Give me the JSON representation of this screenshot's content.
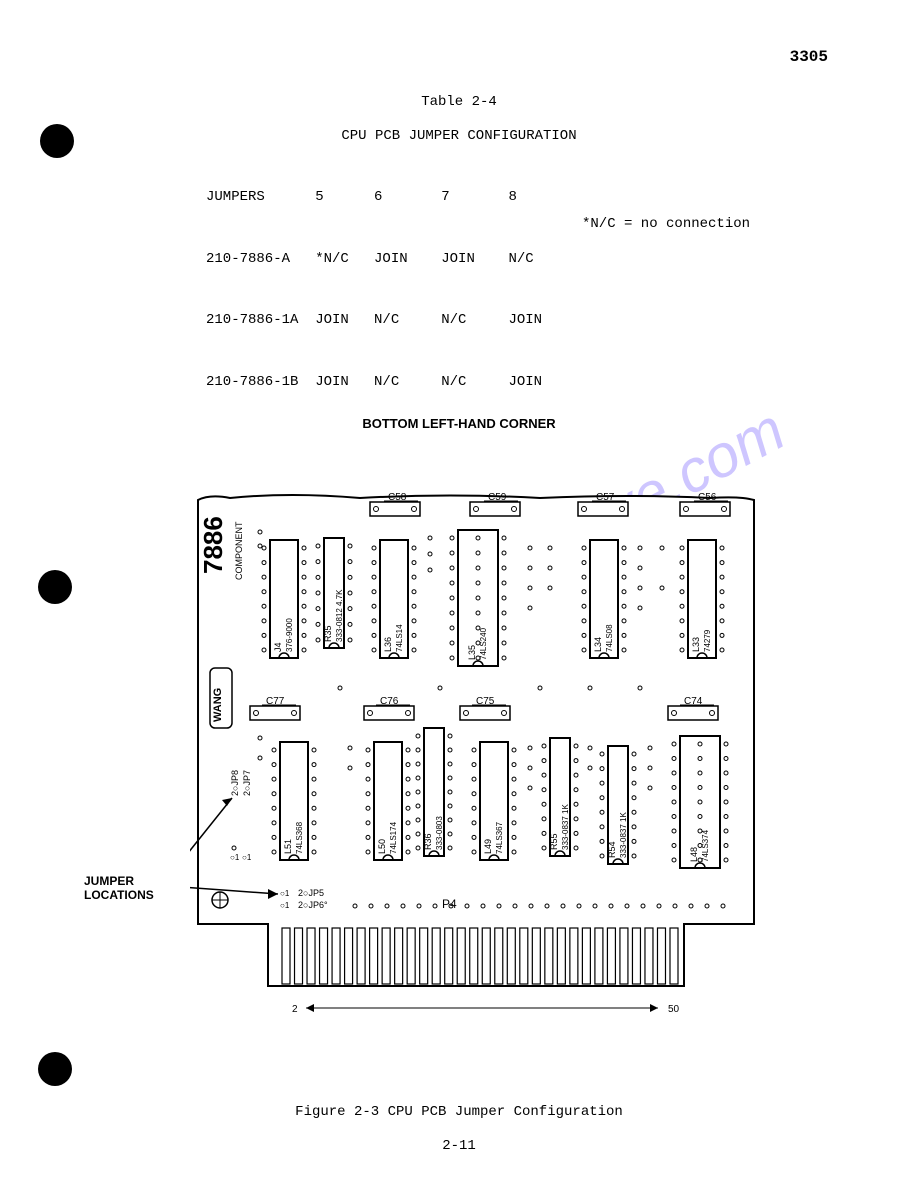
{
  "doc_number": "3305",
  "table_number": "Table 2-4",
  "table_title": "CPU PCB JUMPER CONFIGURATION",
  "nc_note": "*N/C = no connection",
  "jumper_table": {
    "header": [
      "JUMPERS",
      "5",
      "6",
      "7",
      "8"
    ],
    "rows": [
      [
        "210-7886-A",
        "*N/C",
        "JOIN",
        "JOIN",
        "N/C"
      ],
      [
        "210-7886-1A",
        "JOIN",
        "N/C",
        "N/C",
        "JOIN"
      ],
      [
        "210-7886-1B",
        "JOIN",
        "N/C",
        "N/C",
        "JOIN"
      ]
    ]
  },
  "figure_label": "BOTTOM LEFT-HAND CORNER",
  "jumper_locations_label_1": "JUMPER",
  "jumper_locations_label_2": "LOCATIONS",
  "figure_caption": "Figure 2-3   CPU PCB Jumper Configuration",
  "page_number": "2-11",
  "watermark": "manualshive.com",
  "pcb": {
    "board_label": "7886",
    "component_label": "COMPONENT",
    "brand": "WANG",
    "connector_label": "P4",
    "edge_left": "2",
    "edge_right": "50",
    "jp_labels": {
      "jp8": "JP8",
      "jp7": "JP7",
      "jp5": "JP5",
      "jp6": "JP6"
    },
    "caps_top": [
      "C58",
      "C59",
      "C57",
      "C56"
    ],
    "caps_mid": [
      "C77",
      "C76",
      "C75",
      "C74"
    ],
    "ics_top": [
      {
        "ref": "J4",
        "type": "376-9000"
      },
      {
        "ref": "R35",
        "type": "333-0812 4.7K"
      },
      {
        "ref": "L36",
        "type": "74LS14"
      },
      {
        "ref": "L35",
        "type": "74LS240"
      },
      {
        "ref": "L34",
        "type": "74LS08"
      },
      {
        "ref": "L33",
        "type": "74279"
      }
    ],
    "ics_bot": [
      {
        "ref": "L51",
        "type": "74LS368"
      },
      {
        "ref": "L50",
        "type": "74LS174"
      },
      {
        "ref": "R36",
        "type": "333-0803"
      },
      {
        "ref": "L49",
        "type": "74LS367"
      },
      {
        "ref": "R55",
        "type": "333-0837 1K"
      },
      {
        "ref": "R54",
        "type": "333-0837 1K"
      },
      {
        "ref": "L48",
        "type": "74LS374"
      }
    ]
  }
}
